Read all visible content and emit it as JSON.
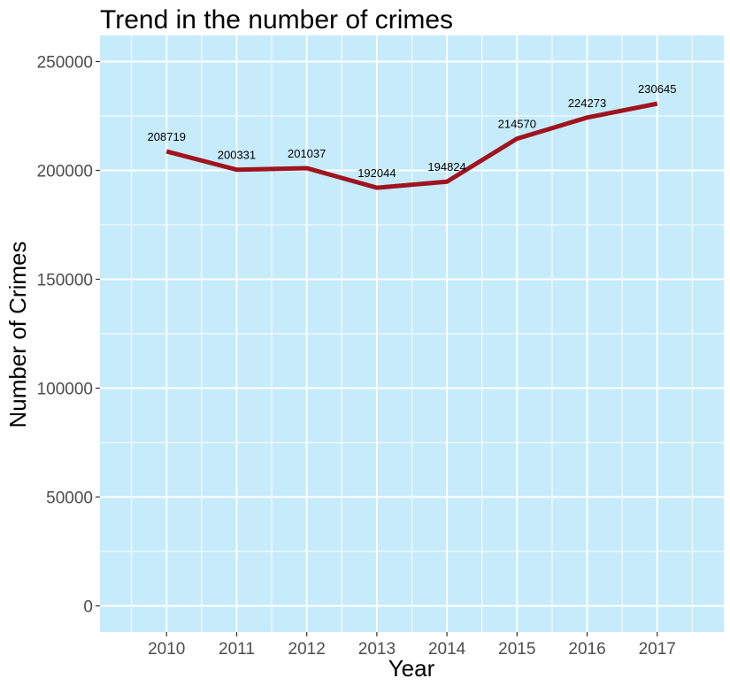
{
  "chart_data": {
    "type": "line",
    "title": "Trend in the number of crimes",
    "xlabel": "Year",
    "ylabel": "Number of Crimes",
    "x": [
      2010,
      2011,
      2012,
      2013,
      2014,
      2015,
      2016,
      2017
    ],
    "x_tick_labels": [
      "2010",
      "2011",
      "2012",
      "2013",
      "2014",
      "2015",
      "2016",
      "2017"
    ],
    "series": [
      {
        "values": [
          208719,
          200331,
          201037,
          192044,
          194824,
          214570,
          224273,
          230645
        ],
        "labels": [
          "208719",
          "200331",
          "201037",
          "192044",
          "194824",
          "214570",
          "224273",
          "230645"
        ]
      }
    ],
    "y_ticks": [
      0,
      50000,
      100000,
      150000,
      200000,
      250000
    ],
    "y_tick_labels": [
      "0",
      "50000",
      "100000",
      "150000",
      "200000",
      "250000"
    ],
    "xlim": [
      2009.05,
      2017.95
    ],
    "ylim": [
      -12000,
      262000
    ],
    "grid": true,
    "colors": {
      "panel_background": "#c6ebfb",
      "grid_major": "#ffffff",
      "grid_minor": "#ffffff",
      "line": "#a0141e"
    }
  }
}
